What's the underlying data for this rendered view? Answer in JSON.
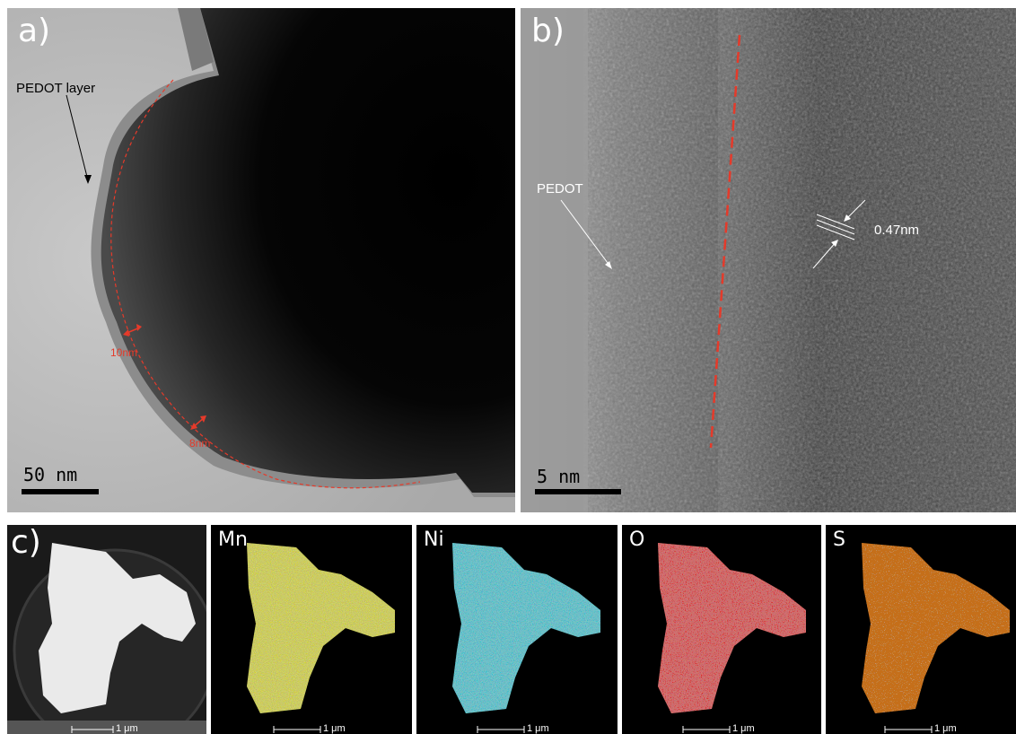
{
  "figure": {
    "panel_a": {
      "label": "a)",
      "annotation_layer": "PEDOT layer",
      "thickness_1": "10nm",
      "thickness_2": "8nm",
      "scale_bar": "50 nm"
    },
    "panel_b": {
      "label": "b)",
      "annotation": "PEDOT",
      "lattice_spacing": "0.47nm",
      "scale_bar": "5 nm"
    },
    "panel_c": {
      "label": "c)",
      "maps": [
        {
          "element": "",
          "scale_bar": "1 μm",
          "color": "#e8e8e8"
        },
        {
          "element": "Mn",
          "scale_bar": "1 μm",
          "color": "#d8d822"
        },
        {
          "element": "Ni",
          "scale_bar": "1 μm",
          "color": "#22c2d2"
        },
        {
          "element": "O",
          "scale_bar": "1 μm",
          "color": "#e01e1e"
        },
        {
          "element": "S",
          "scale_bar": "1 μm",
          "color": "#e8821e"
        }
      ]
    },
    "colors": {
      "annotation_red": "#e53a2a",
      "annotation_white": "#ffffff",
      "scale_bar_black": "#000000"
    }
  }
}
